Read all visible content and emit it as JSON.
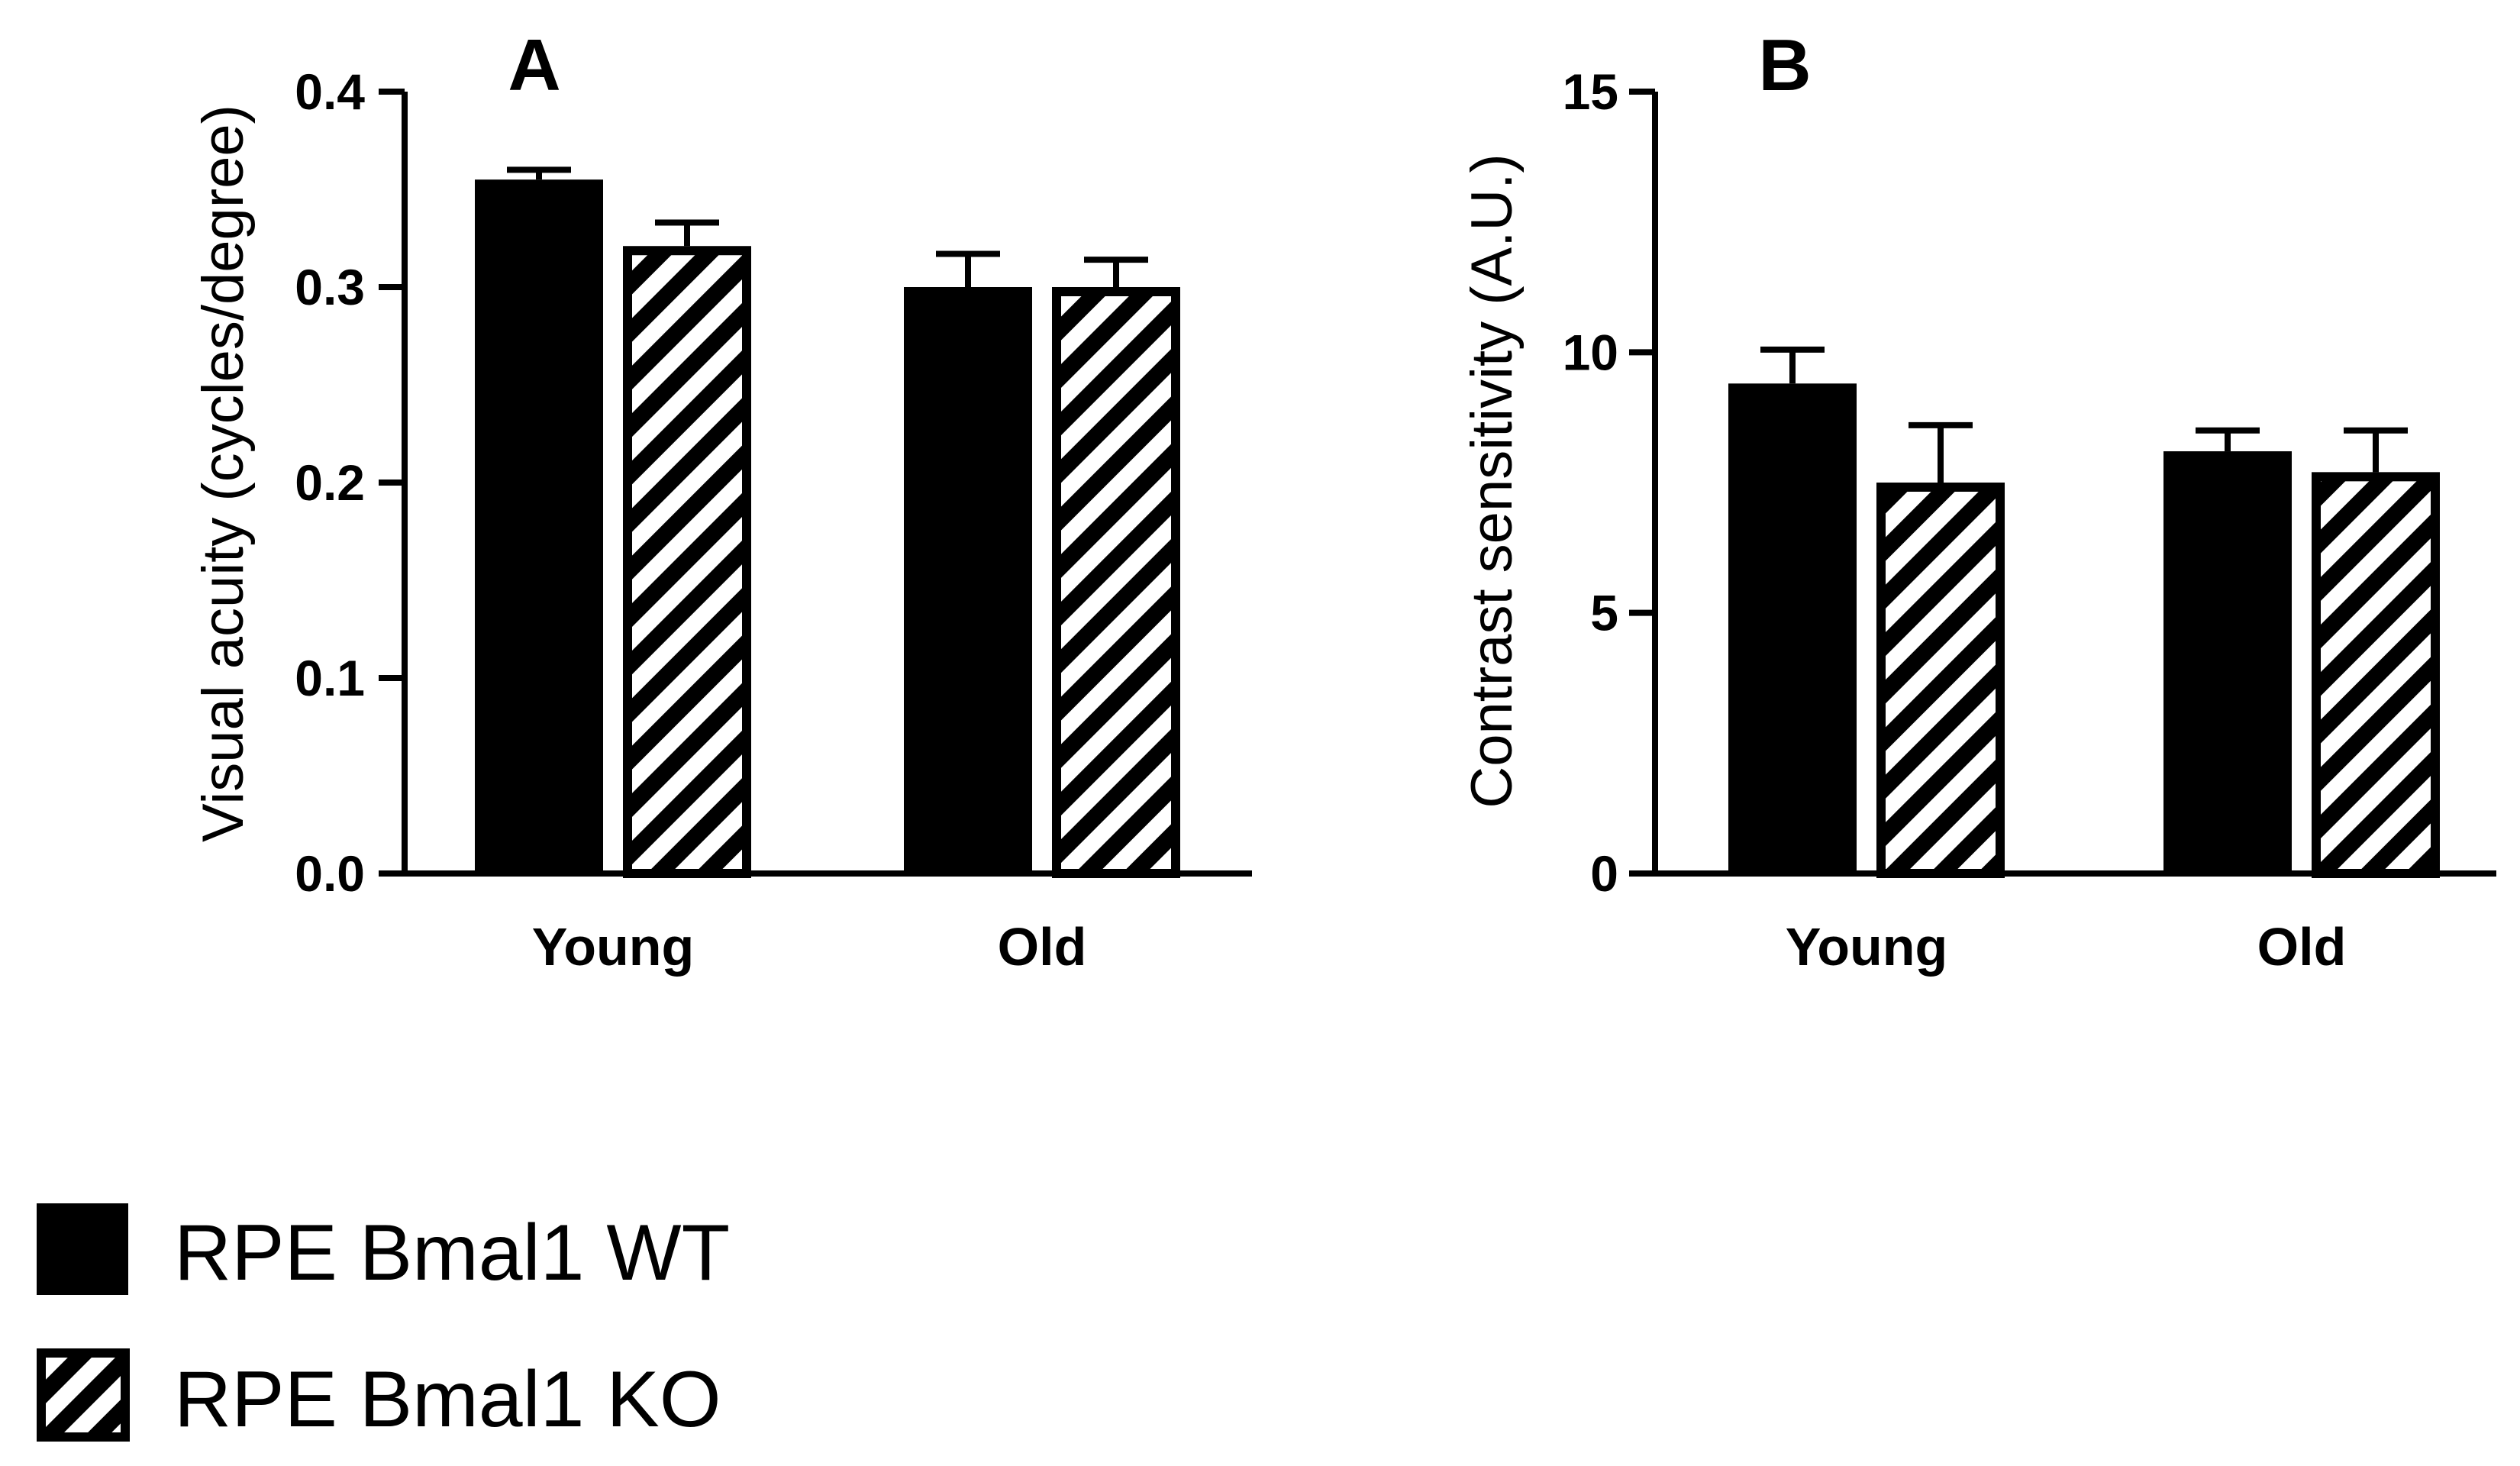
{
  "chart_data": [
    {
      "type": "bar",
      "panel_label": "A",
      "ylabel": "Visual acuity (cycles/degree)",
      "xlabel": "",
      "categories": [
        "Young",
        "Old"
      ],
      "ylim": [
        0,
        0.4
      ],
      "yticks": [
        0,
        0.1,
        0.2,
        0.3,
        0.4
      ],
      "ytick_labels": [
        "0.0",
        "0.1",
        "0.2",
        "0.3",
        "0.4"
      ],
      "series": [
        {
          "name": "RPE Bmal1 WT",
          "values": [
            0.355,
            0.3
          ],
          "errors": [
            0.005,
            0.017
          ]
        },
        {
          "name": "RPE Bmal1 KO",
          "values": [
            0.321,
            0.3
          ],
          "errors": [
            0.012,
            0.014
          ]
        }
      ]
    },
    {
      "type": "bar",
      "panel_label": "B",
      "ylabel": "Contrast sensitivity (A.U.)",
      "xlabel": "",
      "categories": [
        "Young",
        "Old"
      ],
      "ylim": [
        0,
        15
      ],
      "yticks": [
        0,
        5,
        10,
        15
      ],
      "ytick_labels": [
        "0",
        "5",
        "10",
        "15"
      ],
      "series": [
        {
          "name": "RPE Bmal1 WT",
          "values": [
            9.4,
            8.1
          ],
          "errors": [
            0.65,
            0.4
          ]
        },
        {
          "name": "RPE Bmal1 KO",
          "values": [
            7.5,
            7.7
          ],
          "errors": [
            1.1,
            0.8
          ]
        }
      ]
    }
  ],
  "legend": {
    "placement": "bottom-left",
    "items": [
      {
        "label": "RPE Bmal1 WT",
        "fill": "solid"
      },
      {
        "label": "RPE Bmal1 KO",
        "fill": "hatched"
      }
    ]
  },
  "colors": {
    "bar": "#000000",
    "background": "#ffffff"
  }
}
